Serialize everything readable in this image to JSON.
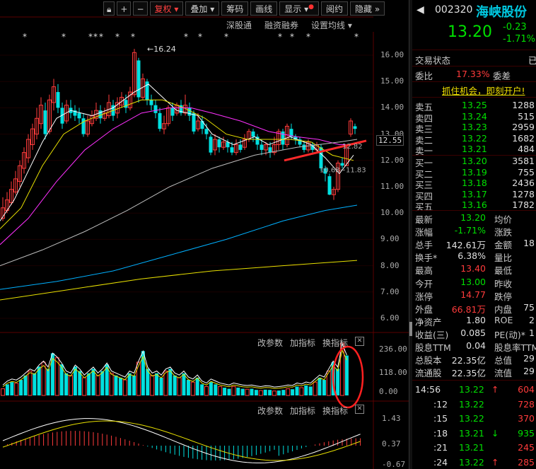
{
  "toolbar": {
    "buttons": [
      "复权",
      "叠加",
      "筹码",
      "画线",
      "显示",
      "阅约",
      "隐藏"
    ],
    "icons": [
      "lock-icon",
      "plus-icon",
      "minus-icon"
    ]
  },
  "subbar": [
    "深股通",
    "融资融券",
    "设置均线"
  ],
  "price_axis": [
    "16.00",
    "15.00",
    "14.00",
    "13.00",
    "12.00",
    "11.00",
    "10.00",
    "9.00",
    "8.00",
    "7.00",
    "6.00"
  ],
  "price_tag": "12.55",
  "annotations": {
    "high": "16.24",
    "mid": "12.82",
    "low": "10.68",
    "low2": "11.83"
  },
  "vol_panel": {
    "buttons": [
      "改参数",
      "加指标",
      "换指标"
    ],
    "axis": [
      "236.00",
      "118.00",
      "0.00"
    ]
  },
  "macd_panel": {
    "buttons": [
      "改参数",
      "加指标",
      "换指标"
    ],
    "axis": [
      "1.43",
      "0.37",
      "-0.67"
    ]
  },
  "colors": {
    "up": "#ff3b3b",
    "down": "#00e0e0",
    "ma5": "#ffffff",
    "ma10": "#e8e000",
    "ma20": "#ff30ff",
    "ma60": "#7fbf7f",
    "ma120": "#00b0ff",
    "ma250": "#e8e000"
  },
  "stock": {
    "code": "002320",
    "name": "海峡股份",
    "price": "13.20",
    "change": "-0.23",
    "pct": "-1.71%",
    "status_label": "交易状态",
    "status_value": "已",
    "weibi_label": "委比",
    "weibi": "17.33%",
    "weicha_label": "委差",
    "promo": "抓住机会，即刻开户!"
  },
  "asks": [
    {
      "label": "卖五",
      "price": "13.25",
      "vol": "1288"
    },
    {
      "label": "卖四",
      "price": "13.24",
      "vol": "515"
    },
    {
      "label": "卖三",
      "price": "13.23",
      "vol": "2959"
    },
    {
      "label": "卖二",
      "price": "13.22",
      "vol": "1682"
    },
    {
      "label": "卖一",
      "price": "13.21",
      "vol": "484"
    }
  ],
  "bids": [
    {
      "label": "买一",
      "price": "13.20",
      "vol": "3581"
    },
    {
      "label": "买二",
      "price": "13.19",
      "vol": "755"
    },
    {
      "label": "买三",
      "price": "13.18",
      "vol": "2436"
    },
    {
      "label": "买四",
      "price": "13.17",
      "vol": "1278"
    },
    {
      "label": "买五",
      "price": "13.16",
      "vol": "1782"
    }
  ],
  "stats": [
    {
      "l1": "最新",
      "v1": "13.20",
      "c1": "g",
      "l2": "均价"
    },
    {
      "l1": "涨幅",
      "v1": "-1.71%",
      "c1": "g",
      "l2": "涨跌"
    },
    {
      "l1": "总手",
      "v1": "142.61万",
      "c1": "w",
      "l2": "金额",
      "v2": "18"
    },
    {
      "l1": "换手*",
      "v1": "6.38%",
      "c1": "w",
      "l2": "量比"
    },
    {
      "l1": "最高",
      "v1": "13.40",
      "c1": "r",
      "l2": "最低"
    },
    {
      "l1": "今开",
      "v1": "13.00",
      "c1": "g",
      "l2": "昨收"
    },
    {
      "l1": "涨停",
      "v1": "14.77",
      "c1": "r",
      "l2": "跌停"
    },
    {
      "l1": "外盘",
      "v1": "66.81万",
      "c1": "r",
      "l2": "内盘",
      "v2": "75"
    },
    {
      "l1": "净资产",
      "v1": "1.80",
      "c1": "w",
      "l2": "ROE",
      "v2": "2"
    },
    {
      "l1": "收益(三)",
      "v1": "0.085",
      "c1": "w",
      "l2": "PE(动)*",
      "v2": "1"
    },
    {
      "l1": "股息TTM",
      "v1": "0.04",
      "c1": "w",
      "l2": "股息率TTM"
    },
    {
      "l1": "总股本",
      "v1": "22.35亿",
      "c1": "w",
      "l2": "总值",
      "v2": "29"
    },
    {
      "l1": "流通股",
      "v1": "22.35亿",
      "c1": "w",
      "l2": "流值",
      "v2": "29"
    }
  ],
  "ticks": [
    {
      "time": "14:56",
      "price": "13.22",
      "arrow": "↑",
      "vol": "604"
    },
    {
      "time": ":12",
      "price": "13.22",
      "arrow": "",
      "vol": "728"
    },
    {
      "time": ":15",
      "price": "13.22",
      "arrow": "",
      "vol": "370"
    },
    {
      "time": ":18",
      "price": "13.21",
      "arrow": "↓",
      "vol": "935"
    },
    {
      "time": ":21",
      "price": "13.21",
      "arrow": "",
      "vol": "245"
    },
    {
      "time": ":24",
      "price": "13.22",
      "arrow": "↑",
      "vol": "285"
    }
  ]
}
